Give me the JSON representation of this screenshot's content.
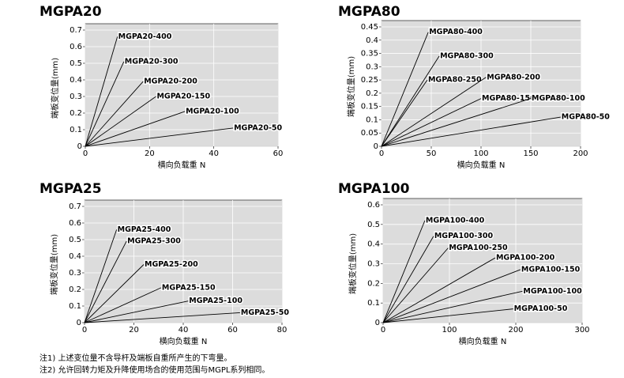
{
  "chart_data": [
    {
      "type": "line",
      "title": "MGPA20",
      "xlabel": "横向负载重 N",
      "ylabel": "端板变位量(mm)",
      "xlim": [
        0,
        60
      ],
      "xticks": [
        0,
        20,
        40,
        60
      ],
      "ylim": [
        0,
        0.7
      ],
      "yticks": [
        0,
        0.1,
        0.2,
        0.3,
        0.4,
        0.5,
        0.6,
        0.7
      ],
      "grid": true,
      "series": [
        {
          "name": "MGPA20-400",
          "color": "#000000",
          "x": [
            0,
            10
          ],
          "values": [
            0,
            0.66
          ]
        },
        {
          "name": "MGPA20-300",
          "color": "#000000",
          "x": [
            0,
            12
          ],
          "values": [
            0,
            0.51
          ]
        },
        {
          "name": "MGPA20-200",
          "color": "#000000",
          "x": [
            0,
            18
          ],
          "values": [
            0,
            0.39
          ]
        },
        {
          "name": "MGPA20-150",
          "color": "#000000",
          "x": [
            0,
            22
          ],
          "values": [
            0,
            0.3
          ]
        },
        {
          "name": "MGPA20-100",
          "color": "#000000",
          "x": [
            0,
            31
          ],
          "values": [
            0,
            0.21
          ]
        },
        {
          "name": "MGPA20-50",
          "color": "#000000",
          "x": [
            0,
            46
          ],
          "values": [
            0,
            0.11
          ]
        }
      ]
    },
    {
      "type": "line",
      "title": "MGPA80",
      "xlabel": "横向负载重 N",
      "ylabel": "端板变位量(mm)",
      "xlim": [
        0,
        200
      ],
      "xticks": [
        0,
        50,
        100,
        150,
        200
      ],
      "ylim": [
        0,
        0.45
      ],
      "yticks": [
        0,
        0.05,
        0.1,
        0.15,
        0.2,
        0.25,
        0.3,
        0.35,
        0.4,
        0.45
      ],
      "grid": true,
      "series": [
        {
          "name": "MGPA80-400",
          "color": "#000000",
          "x": [
            0,
            47
          ],
          "values": [
            0,
            0.43
          ]
        },
        {
          "name": "MGPA80-300",
          "color": "#000000",
          "x": [
            0,
            58
          ],
          "values": [
            0,
            0.34
          ]
        },
        {
          "name": "MGPA80-250",
          "color": "#000000",
          "x": [
            0,
            46
          ],
          "values": [
            0,
            0.25
          ]
        },
        {
          "name": "MGPA80-200",
          "color": "#000000",
          "x": [
            0,
            105
          ],
          "values": [
            0,
            0.26
          ]
        },
        {
          "name": "MGPA80-150",
          "color": "#000000",
          "x": [
            0,
            100
          ],
          "values": [
            0,
            0.18
          ]
        },
        {
          "name": "MGPA80-100",
          "color": "#000000",
          "x": [
            0,
            150
          ],
          "values": [
            0,
            0.18
          ]
        },
        {
          "name": "MGPA80-50",
          "color": "#000000",
          "x": [
            0,
            180
          ],
          "values": [
            0,
            0.11
          ]
        }
      ]
    },
    {
      "type": "line",
      "title": "MGPA25",
      "xlabel": "横向负载重 N",
      "ylabel": "端板变位量(mm)",
      "xlim": [
        0,
        80
      ],
      "xticks": [
        0,
        20,
        40,
        60,
        80
      ],
      "ylim": [
        0,
        0.7
      ],
      "yticks": [
        0,
        0.1,
        0.2,
        0.3,
        0.4,
        0.5,
        0.6,
        0.7
      ],
      "grid": true,
      "series": [
        {
          "name": "MGPA25-400",
          "color": "#000000",
          "x": [
            0,
            13
          ],
          "values": [
            0,
            0.56
          ]
        },
        {
          "name": "MGPA25-300",
          "color": "#000000",
          "x": [
            0,
            17
          ],
          "values": [
            0,
            0.49
          ]
        },
        {
          "name": "MGPA25-200",
          "color": "#000000",
          "x": [
            0,
            24
          ],
          "values": [
            0,
            0.35
          ]
        },
        {
          "name": "MGPA25-150",
          "color": "#000000",
          "x": [
            0,
            31
          ],
          "values": [
            0,
            0.21
          ]
        },
        {
          "name": "MGPA25-100",
          "color": "#000000",
          "x": [
            0,
            42
          ],
          "values": [
            0,
            0.13
          ]
        },
        {
          "name": "MGPA25-50",
          "color": "#000000",
          "x": [
            0,
            63
          ],
          "values": [
            0,
            0.06
          ]
        }
      ]
    },
    {
      "type": "line",
      "title": "MGPA100",
      "xlabel": "横向负载重 N",
      "ylabel": "端板变位量(mm)",
      "xlim": [
        0,
        300
      ],
      "xticks": [
        0,
        100,
        200,
        300
      ],
      "ylim": [
        0,
        0.6
      ],
      "yticks": [
        0,
        0.1,
        0.2,
        0.3,
        0.4,
        0.5,
        0.6
      ],
      "grid": true,
      "series": [
        {
          "name": "MGPA100-400",
          "color": "#000000",
          "x": [
            0,
            63
          ],
          "values": [
            0,
            0.52
          ]
        },
        {
          "name": "MGPA100-300",
          "color": "#000000",
          "x": [
            0,
            76
          ],
          "values": [
            0,
            0.44
          ]
        },
        {
          "name": "MGPA100-250",
          "color": "#000000",
          "x": [
            0,
            98
          ],
          "values": [
            0,
            0.38
          ]
        },
        {
          "name": "MGPA100-200",
          "color": "#000000",
          "x": [
            0,
            169
          ],
          "values": [
            0,
            0.33
          ]
        },
        {
          "name": "MGPA100-150",
          "color": "#000000",
          "x": [
            0,
            207
          ],
          "values": [
            0,
            0.27
          ]
        },
        {
          "name": "MGPA100-100",
          "color": "#000000",
          "x": [
            0,
            210
          ],
          "values": [
            0,
            0.16
          ]
        },
        {
          "name": "MGPA100-50",
          "color": "#000000",
          "x": [
            0,
            196
          ],
          "values": [
            0,
            0.07
          ]
        }
      ]
    }
  ],
  "notes": [
    "注1) 上述变位量不含导杆及端板自重所产生的下弯量。",
    "注2) 允许回转力矩及升降使用场合的使用范围与MGPL系列相同。"
  ]
}
